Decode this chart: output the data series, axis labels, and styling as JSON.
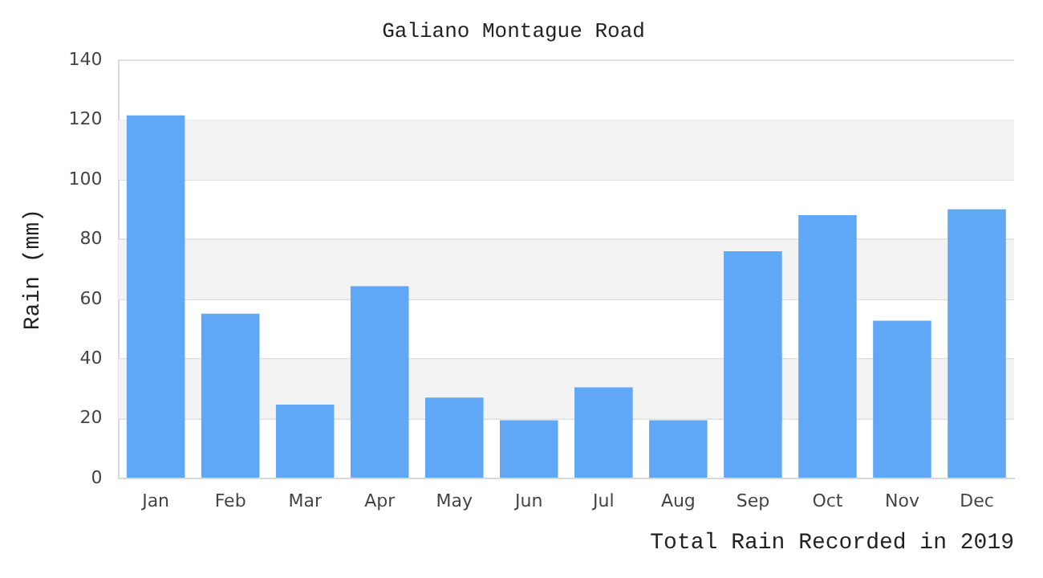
{
  "chart_data": {
    "type": "bar",
    "title": "Galiano Montague Road",
    "xlabel": "Total Rain Recorded in 2019",
    "ylabel": "Rain (mm)",
    "categories": [
      "Jan",
      "Feb",
      "Mar",
      "Apr",
      "May",
      "Jun",
      "Jul",
      "Aug",
      "Sep",
      "Oct",
      "Nov",
      "Dec"
    ],
    "values": [
      121.6,
      55.2,
      24.7,
      64.4,
      27.1,
      19.5,
      30.5,
      19.5,
      76.1,
      88.2,
      52.8,
      90.1
    ],
    "color": "#60a8f5",
    "ylim": [
      0,
      140
    ],
    "yticks": [
      0,
      20,
      40,
      60,
      80,
      100,
      120,
      140
    ],
    "grid": "y",
    "legend": false
  }
}
